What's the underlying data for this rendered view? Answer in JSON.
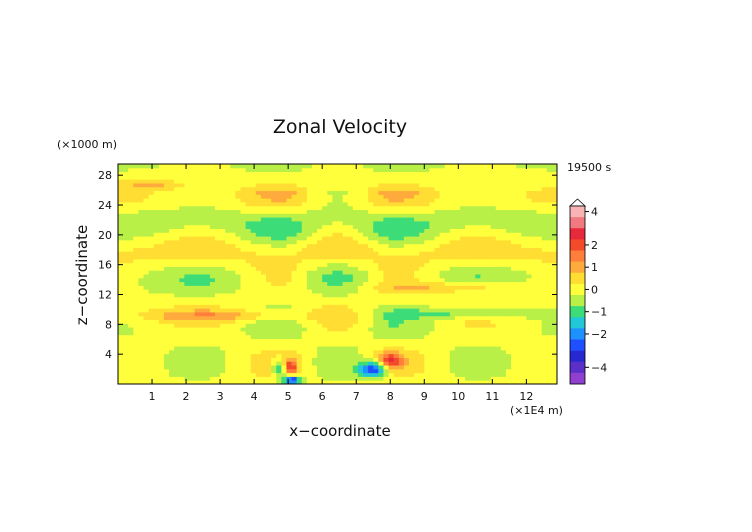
{
  "chart_data": {
    "type": "heatmap",
    "title": "Zonal Velocity",
    "xlabel": "x−coordinate",
    "ylabel": "z−coordinate",
    "x_unit": "(×1E4 m)",
    "y_unit": "(×1000 m)",
    "time_label": "19500 s",
    "xlim": [
      0,
      12.9
    ],
    "ylim": [
      0,
      29.5
    ],
    "x_ticks": [
      1,
      2,
      3,
      4,
      5,
      6,
      7,
      8,
      9,
      10,
      11,
      12
    ],
    "y_ticks": [
      4,
      8,
      12,
      16,
      20,
      24,
      28
    ],
    "colorbar": {
      "tick_labels": [
        "4",
        "2",
        "1",
        "0",
        "−1",
        "−2",
        "−4"
      ],
      "tick_values": [
        4,
        2,
        1,
        0,
        -1,
        -2,
        -4
      ],
      "levels": [
        {
          "lo": 4.5,
          "color": "#f8b4b4"
        },
        {
          "lo": 3.5,
          "color": "#f07a80"
        },
        {
          "lo": 2.5,
          "color": "#e8283c"
        },
        {
          "lo": 2.0,
          "color": "#f34a2a"
        },
        {
          "lo": 1.5,
          "color": "#ff7f3a"
        },
        {
          "lo": 1.0,
          "color": "#ffaa3c"
        },
        {
          "lo": 0.5,
          "color": "#ffdd33"
        },
        {
          "lo": 0.0,
          "color": "#ffff3c"
        },
        {
          "lo": -0.5,
          "color": "#b8f048"
        },
        {
          "lo": -1.0,
          "color": "#3cdc78"
        },
        {
          "lo": -1.5,
          "color": "#22c8d8"
        },
        {
          "lo": -2.0,
          "color": "#1e90ff"
        },
        {
          "lo": -2.5,
          "color": "#1e50ff"
        },
        {
          "lo": -3.0,
          "color": "#2828d0"
        },
        {
          "lo": -4.0,
          "color": "#5a30c8"
        },
        {
          "lo": -5.0,
          "color": "#9040d0"
        }
      ]
    }
  }
}
